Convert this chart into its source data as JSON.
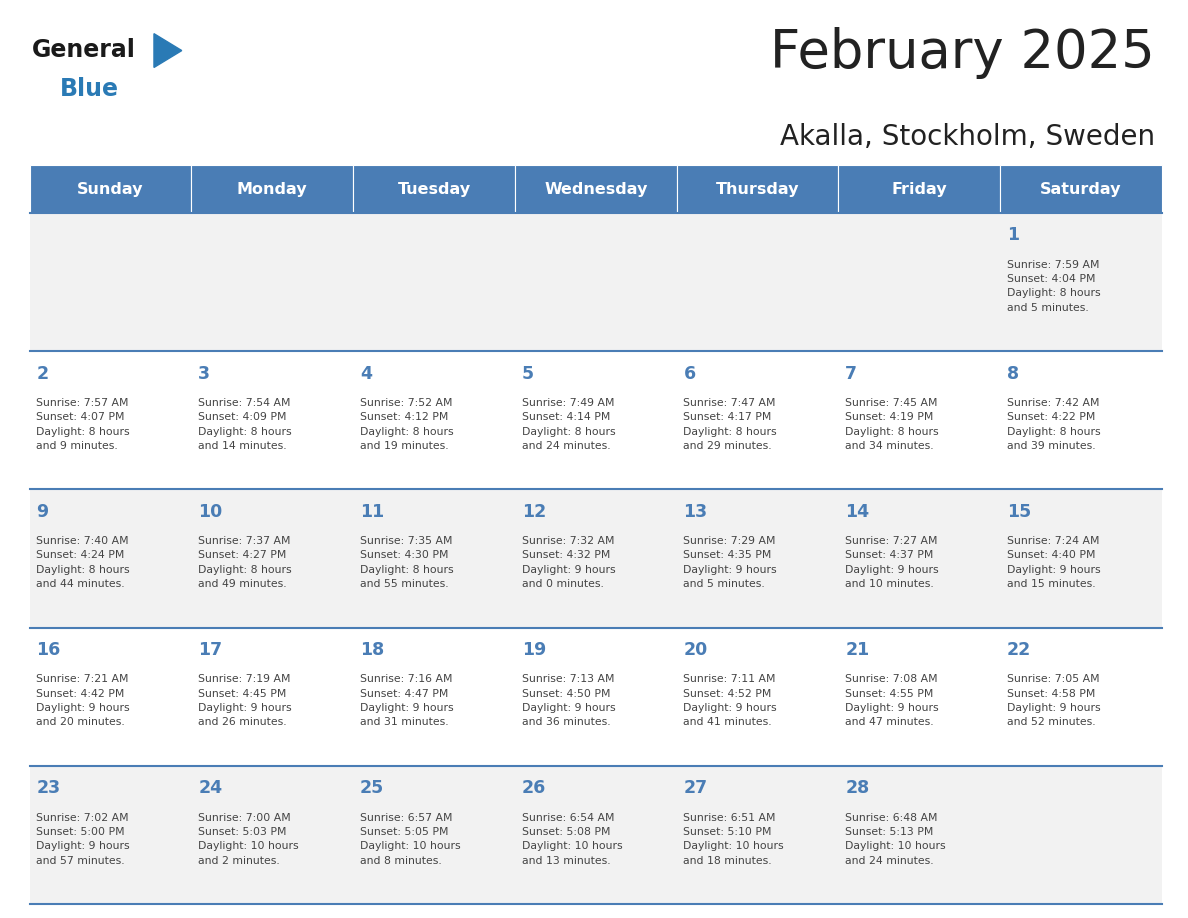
{
  "title": "February 2025",
  "subtitle": "Akalla, Stockholm, Sweden",
  "days_of_week": [
    "Sunday",
    "Monday",
    "Tuesday",
    "Wednesday",
    "Thursday",
    "Friday",
    "Saturday"
  ],
  "header_bg": "#4a7db5",
  "header_text": "#ffffff",
  "row_bg_even": "#f2f2f2",
  "row_bg_odd": "#ffffff",
  "cell_border": "#4a7db5",
  "day_number_color": "#4a7db5",
  "text_color": "#444444",
  "title_color": "#222222",
  "logo_general_color": "#1a1a1a",
  "logo_blue_color": "#2a7ab5",
  "weeks": [
    [
      {
        "day": null,
        "info": null
      },
      {
        "day": null,
        "info": null
      },
      {
        "day": null,
        "info": null
      },
      {
        "day": null,
        "info": null
      },
      {
        "day": null,
        "info": null
      },
      {
        "day": null,
        "info": null
      },
      {
        "day": 1,
        "info": "Sunrise: 7:59 AM\nSunset: 4:04 PM\nDaylight: 8 hours\nand 5 minutes."
      }
    ],
    [
      {
        "day": 2,
        "info": "Sunrise: 7:57 AM\nSunset: 4:07 PM\nDaylight: 8 hours\nand 9 minutes."
      },
      {
        "day": 3,
        "info": "Sunrise: 7:54 AM\nSunset: 4:09 PM\nDaylight: 8 hours\nand 14 minutes."
      },
      {
        "day": 4,
        "info": "Sunrise: 7:52 AM\nSunset: 4:12 PM\nDaylight: 8 hours\nand 19 minutes."
      },
      {
        "day": 5,
        "info": "Sunrise: 7:49 AM\nSunset: 4:14 PM\nDaylight: 8 hours\nand 24 minutes."
      },
      {
        "day": 6,
        "info": "Sunrise: 7:47 AM\nSunset: 4:17 PM\nDaylight: 8 hours\nand 29 minutes."
      },
      {
        "day": 7,
        "info": "Sunrise: 7:45 AM\nSunset: 4:19 PM\nDaylight: 8 hours\nand 34 minutes."
      },
      {
        "day": 8,
        "info": "Sunrise: 7:42 AM\nSunset: 4:22 PM\nDaylight: 8 hours\nand 39 minutes."
      }
    ],
    [
      {
        "day": 9,
        "info": "Sunrise: 7:40 AM\nSunset: 4:24 PM\nDaylight: 8 hours\nand 44 minutes."
      },
      {
        "day": 10,
        "info": "Sunrise: 7:37 AM\nSunset: 4:27 PM\nDaylight: 8 hours\nand 49 minutes."
      },
      {
        "day": 11,
        "info": "Sunrise: 7:35 AM\nSunset: 4:30 PM\nDaylight: 8 hours\nand 55 minutes."
      },
      {
        "day": 12,
        "info": "Sunrise: 7:32 AM\nSunset: 4:32 PM\nDaylight: 9 hours\nand 0 minutes."
      },
      {
        "day": 13,
        "info": "Sunrise: 7:29 AM\nSunset: 4:35 PM\nDaylight: 9 hours\nand 5 minutes."
      },
      {
        "day": 14,
        "info": "Sunrise: 7:27 AM\nSunset: 4:37 PM\nDaylight: 9 hours\nand 10 minutes."
      },
      {
        "day": 15,
        "info": "Sunrise: 7:24 AM\nSunset: 4:40 PM\nDaylight: 9 hours\nand 15 minutes."
      }
    ],
    [
      {
        "day": 16,
        "info": "Sunrise: 7:21 AM\nSunset: 4:42 PM\nDaylight: 9 hours\nand 20 minutes."
      },
      {
        "day": 17,
        "info": "Sunrise: 7:19 AM\nSunset: 4:45 PM\nDaylight: 9 hours\nand 26 minutes."
      },
      {
        "day": 18,
        "info": "Sunrise: 7:16 AM\nSunset: 4:47 PM\nDaylight: 9 hours\nand 31 minutes."
      },
      {
        "day": 19,
        "info": "Sunrise: 7:13 AM\nSunset: 4:50 PM\nDaylight: 9 hours\nand 36 minutes."
      },
      {
        "day": 20,
        "info": "Sunrise: 7:11 AM\nSunset: 4:52 PM\nDaylight: 9 hours\nand 41 minutes."
      },
      {
        "day": 21,
        "info": "Sunrise: 7:08 AM\nSunset: 4:55 PM\nDaylight: 9 hours\nand 47 minutes."
      },
      {
        "day": 22,
        "info": "Sunrise: 7:05 AM\nSunset: 4:58 PM\nDaylight: 9 hours\nand 52 minutes."
      }
    ],
    [
      {
        "day": 23,
        "info": "Sunrise: 7:02 AM\nSunset: 5:00 PM\nDaylight: 9 hours\nand 57 minutes."
      },
      {
        "day": 24,
        "info": "Sunrise: 7:00 AM\nSunset: 5:03 PM\nDaylight: 10 hours\nand 2 minutes."
      },
      {
        "day": 25,
        "info": "Sunrise: 6:57 AM\nSunset: 5:05 PM\nDaylight: 10 hours\nand 8 minutes."
      },
      {
        "day": 26,
        "info": "Sunrise: 6:54 AM\nSunset: 5:08 PM\nDaylight: 10 hours\nand 13 minutes."
      },
      {
        "day": 27,
        "info": "Sunrise: 6:51 AM\nSunset: 5:10 PM\nDaylight: 10 hours\nand 18 minutes."
      },
      {
        "day": 28,
        "info": "Sunrise: 6:48 AM\nSunset: 5:13 PM\nDaylight: 10 hours\nand 24 minutes."
      },
      {
        "day": null,
        "info": null
      }
    ]
  ]
}
